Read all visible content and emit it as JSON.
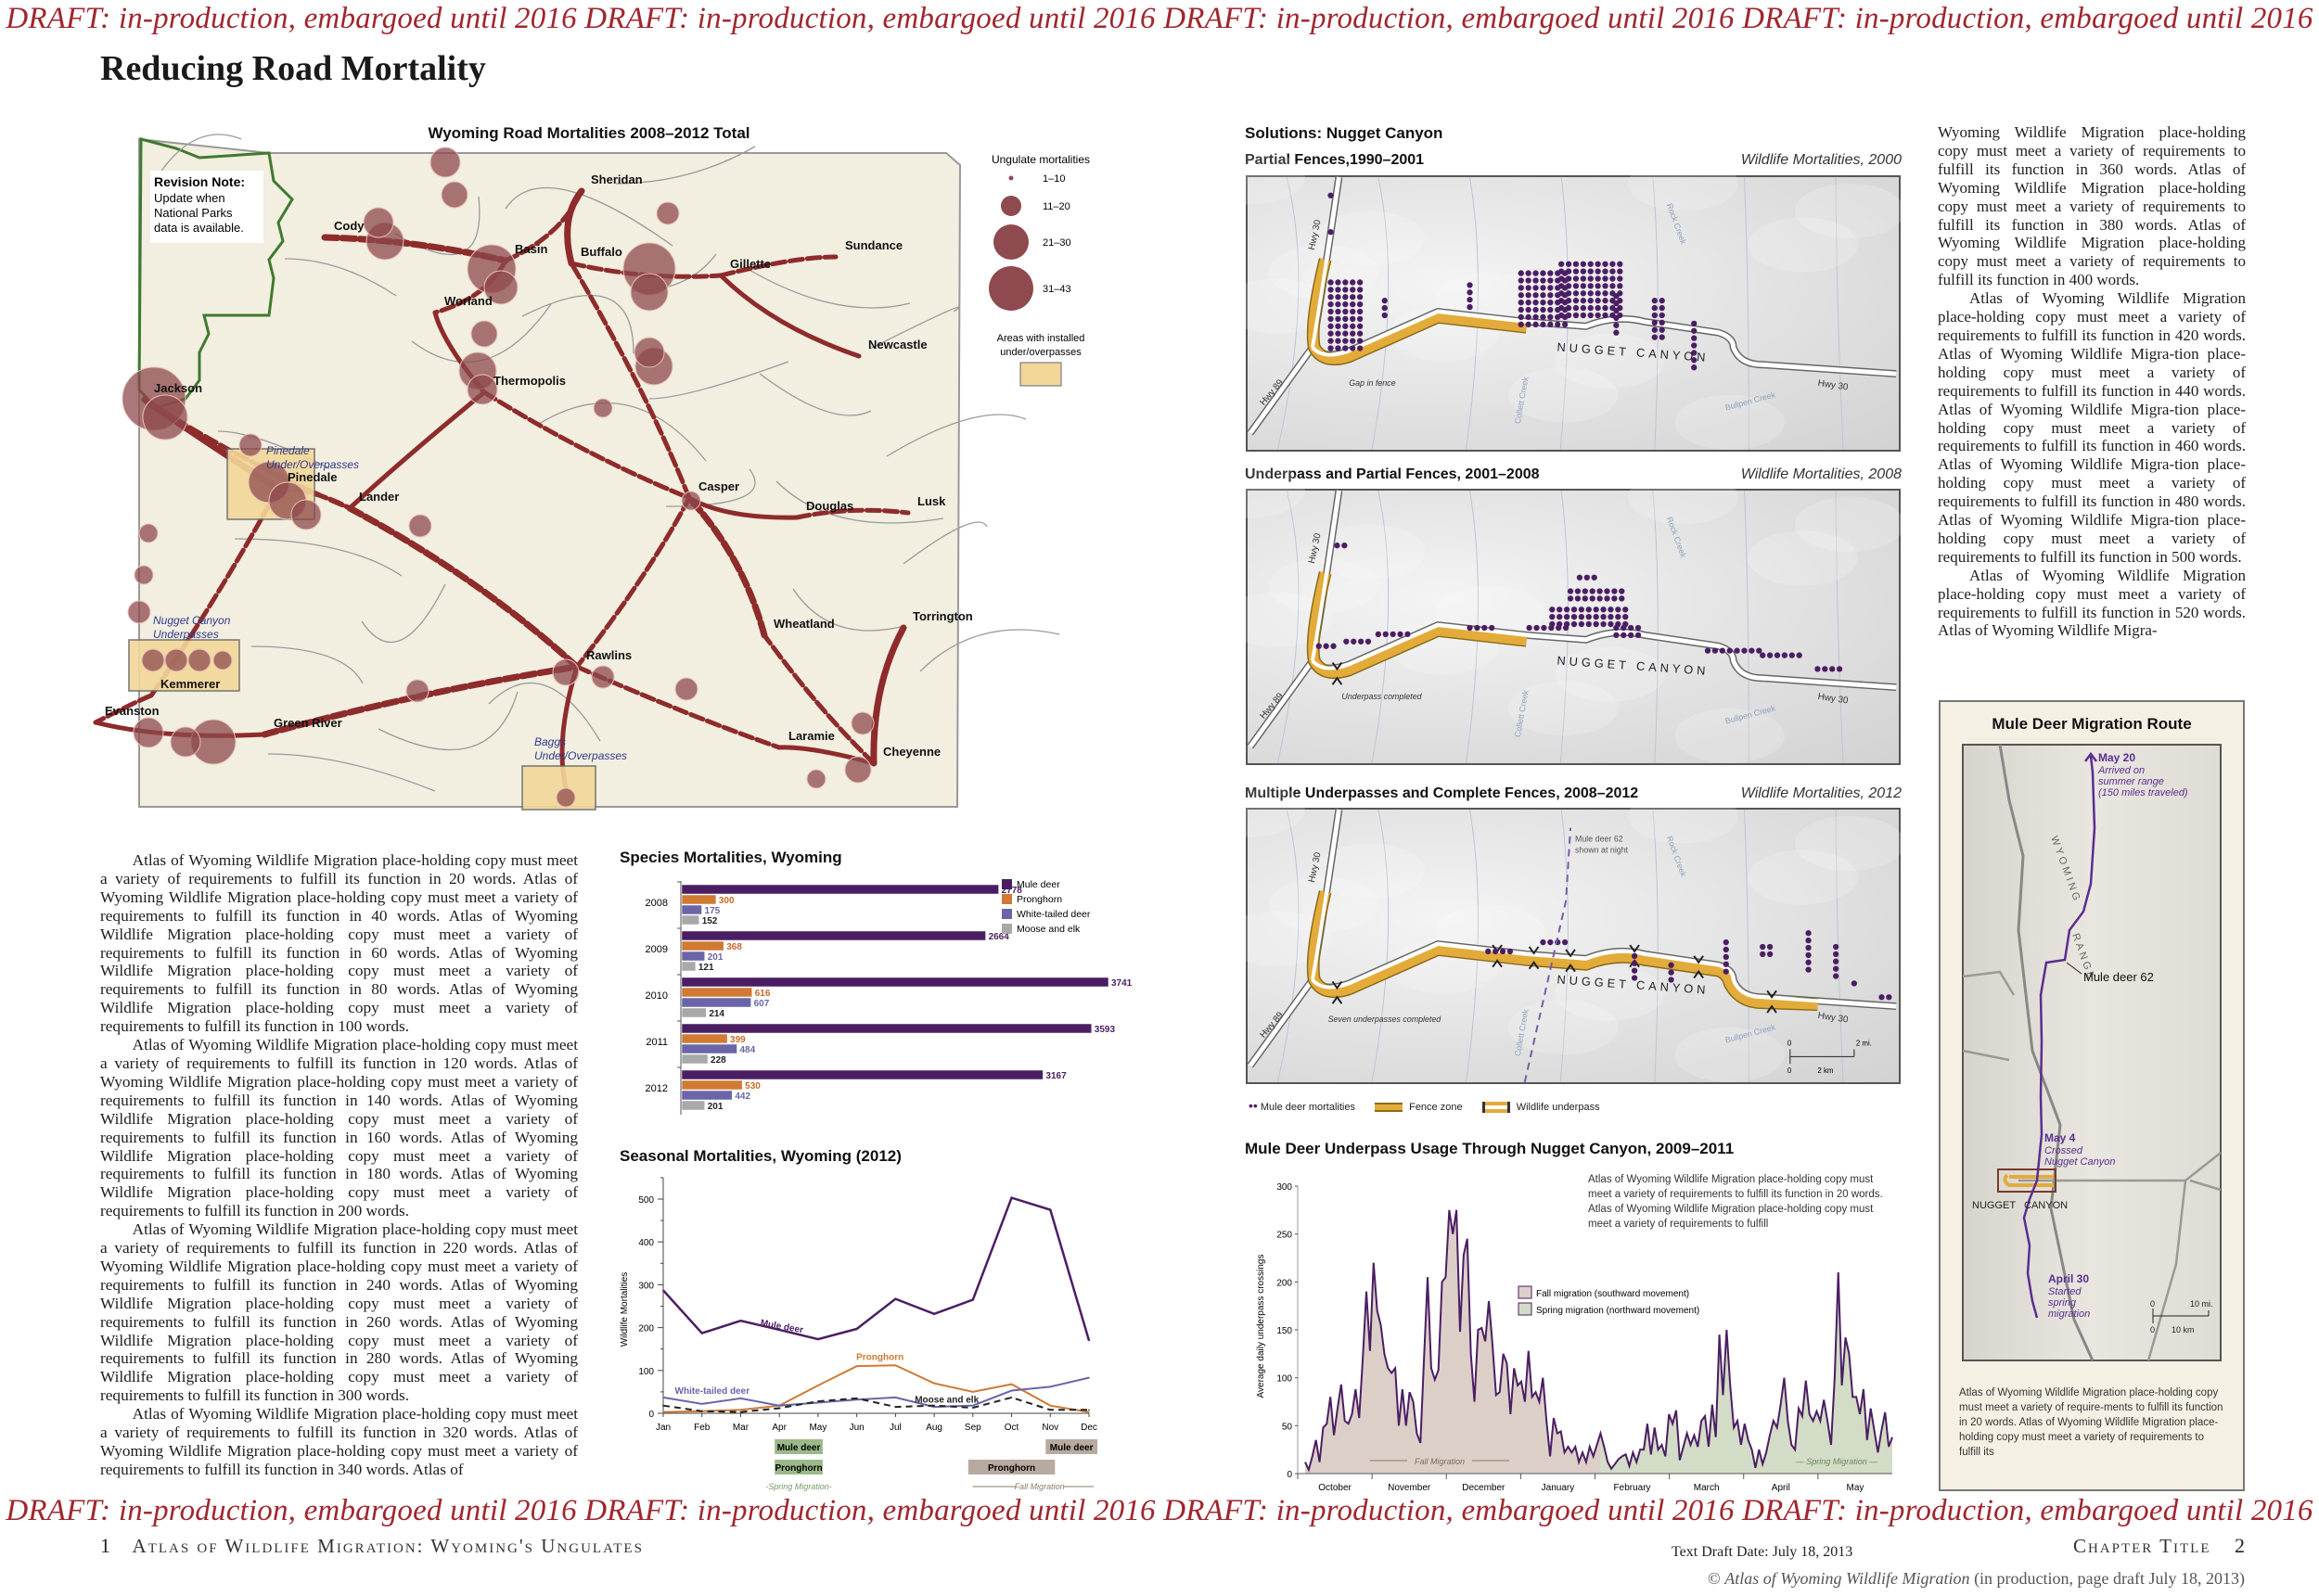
{
  "draft_banner": "DRAFT: in-production, embargoed until 2016 DRAFT: in-production, embargoed until 2016 DRAFT: in-production, embargoed until 2016 DRAFT: in-production, embargoed until 2016",
  "page_title": "Reducing Road Mortality",
  "colors": {
    "draft": "#a0262e",
    "mule_deer": "#4b1e63",
    "pronghorn": "#d07a34",
    "white_tailed": "#6a65a8",
    "moose_elk": "#a9a9a9",
    "road": "#8e2b2b",
    "fence": "#e3ac3a",
    "overpass_area": "#f3d799"
  },
  "wyoming_map": {
    "title": "Wyoming Road Mortalities 2008–2012 Total",
    "revision_note_title": "Revision Note:",
    "revision_note_lines": [
      "Update when",
      "National Parks",
      "data is available."
    ],
    "cities": [
      "Sheridan",
      "Cody",
      "Basin",
      "Buffalo",
      "Gillette",
      "Sundance",
      "Worland",
      "Thermopolis",
      "Newcastle",
      "Jackson",
      "Pinedale",
      "Lander",
      "Casper",
      "Douglas",
      "Lusk",
      "Torrington",
      "Wheatland",
      "Rawlins",
      "Kemmerer",
      "Evanston",
      "Green River",
      "Laramie",
      "Cheyenne"
    ],
    "overpass_labels": [
      [
        "Pinedale",
        "Under/Overpasses"
      ],
      [
        "Nugget Canyon",
        "Underpasses"
      ],
      [
        "Baggs",
        "Under/Overpasses"
      ]
    ],
    "legend": {
      "title": "Ungulate mortalities",
      "classes": [
        "1–10",
        "11–20",
        "21–30",
        "31–43"
      ],
      "area_label_1": "Areas with installed",
      "area_label_2": "under/overpasses"
    }
  },
  "left_text": [
    "Atlas of Wyoming Wildlife Migration place-holding copy must meet a variety of requirements to fulfill its function in 20 words. Atlas of Wyoming Wildlife Migration place-holding copy must meet a variety of requirements to fulfill its function in 40 words. Atlas of Wyoming Wildlife Migration place-holding copy must meet a variety of requirements to fulfill its function in 60 words. Atlas of Wyoming Wildlife Migration place-holding copy must meet a variety of requirements to fulfill its function in 80 words. Atlas of Wyoming Wildlife Migration place-holding copy must meet a variety of requirements to fulfill its function in 100 words.",
    "Atlas of Wyoming Wildlife Migration place-holding copy must meet a variety of requirements to fulfill its function in 120 words. Atlas of Wyoming Wildlife Migration place-holding copy must meet a variety of requirements to fulfill its function in 140 words. Atlas of Wyoming Wildlife Migration place-holding copy must meet a variety of requirements to fulfill its function in 160 words. Atlas of Wyoming Wildlife Migration place-holding copy must meet a variety of requirements to fulfill its function in 180 words. Atlas of Wyoming Wildlife Migration place-holding copy must meet a variety of requirements to fulfill its function in 200 words.",
    "Atlas of Wyoming Wildlife Migration place-holding copy must meet a variety of requirements to fulfill its function in 220 words. Atlas of Wyoming Wildlife Migration place-holding copy must meet a variety of requirements to fulfill its function in 240 words. Atlas of Wyoming Wildlife Migration place-holding copy must meet a variety of requirements to fulfill its function in 260 words. Atlas of Wyoming Wildlife Migration place-holding copy must meet a variety of requirements to fulfill its function in 280 words. Atlas of Wyoming Wildlife Migration place-holding copy must meet a variety of requirements to fulfill its function in 300 words.",
    "Atlas of Wyoming Wildlife Migration place-holding copy must meet a variety of requirements to fulfill its function in 320 words. Atlas of Wyoming Wildlife Migration place-holding copy must meet a variety of requirements to fulfill its function in 340 words. Atlas of"
  ],
  "right_text": [
    "Wyoming Wildlife Migration place-holding copy must meet a variety of requirements to fulfill its function in 360 words. Atlas of Wyoming Wildlife Migration place-holding copy must meet a variety of requirements to fulfill its function in 380 words. Atlas of Wyoming Wildlife Migration place-holding copy must meet a variety of requirements to fulfill its function in 400 words.",
    "Atlas of Wyoming Wildlife Migration place-holding copy must meet a variety of requirements to fulfill its function in 420 words. Atlas of Wyoming Wildlife Migra-tion place-holding copy must meet a variety of requirements to fulfill its function in 440 words. Atlas of Wyoming Wildlife Migra-tion place-holding copy must meet a variety of requirements to fulfill its function in 460 words. Atlas of Wyoming Wildlife Migra-tion place-holding copy must meet a variety of requirements to fulfill its function in 480 words. Atlas of Wyoming Wildlife Migra-tion place-holding copy must meet a variety of requirements to fulfill its function in 500 words.",
    "Atlas of Wyoming Wildlife Migration place-holding copy must meet a variety of requirements to fulfill its function in 520 words. Atlas of Wyoming Wildlife Migra-"
  ],
  "nugget": {
    "section_title": "Solutions: Nugget Canyon",
    "panels": [
      {
        "title": "Partial Fences,1990–2001",
        "subtitle": "Wildlife Mortalities, 2000",
        "note": "Gap in fence"
      },
      {
        "title": "Underpass and Partial Fences, 2001–2008",
        "subtitle": "Wildlife Mortalities, 2008",
        "note": "Underpass completed"
      },
      {
        "title": "Multiple Underpasses and Complete Fences, 2008–2012",
        "subtitle": "Wildlife Mortalities, 2012",
        "note": "Seven underpasses completed"
      }
    ],
    "labels": {
      "hwy30": "Hwy 30",
      "hwy89": "Hwy 89",
      "canyon1": "NUGGET",
      "canyon2": "CANYON",
      "rock_creek": "Rock Creek",
      "collett_creek": "Collett Creek",
      "bullpen_creek": "Bullpen Creek",
      "deer62": "Mule deer 62",
      "deer62b": "shown at night",
      "scale_0": "0",
      "scale_mi": "2 mi.",
      "scale_km": "2 km"
    },
    "legend": [
      "Mule deer mortalities",
      "Fence zone",
      "Wildlife underpass"
    ]
  },
  "chart_data": [
    {
      "type": "bar",
      "title": "Species Mortalities, Wyoming",
      "categories": [
        "2008",
        "2009",
        "2010",
        "2011",
        "2012"
      ],
      "series": [
        {
          "name": "Mule deer",
          "values": [
            2778,
            2664,
            3741,
            3593,
            3167
          ]
        },
        {
          "name": "Pronghorn",
          "values": [
            300,
            368,
            616,
            399,
            530
          ]
        },
        {
          "name": "White-tailed deer",
          "values": [
            175,
            201,
            607,
            484,
            442
          ]
        },
        {
          "name": "Moose and elk",
          "values": [
            152,
            121,
            214,
            228,
            201
          ]
        }
      ],
      "orientation": "horizontal",
      "legend": "top-right"
    },
    {
      "type": "line",
      "title": "Seasonal Mortalities, Wyoming (2012)",
      "ylabel": "Wildlife Mortalities",
      "x": [
        "Jan",
        "Feb",
        "Mar",
        "Apr",
        "May",
        "Jun",
        "Jul",
        "Aug",
        "Sep",
        "Oct",
        "Nov",
        "Dec"
      ],
      "yticks": [
        0,
        100,
        200,
        300,
        400,
        500
      ],
      "ylim": [
        0,
        550
      ],
      "series": [
        {
          "name": "Mule deer",
          "values": [
            287,
            187,
            216,
            195,
            173,
            197,
            267,
            232,
            265,
            503,
            475,
            170
          ]
        },
        {
          "name": "Pronghorn",
          "values": [
            3,
            5,
            8,
            18,
            65,
            110,
            112,
            70,
            50,
            68,
            18,
            3
          ]
        },
        {
          "name": "White-tailed deer",
          "values": [
            37,
            22,
            35,
            18,
            25,
            32,
            37,
            15,
            18,
            53,
            62,
            83
          ]
        },
        {
          "name": "Moose and elk",
          "values": [
            18,
            5,
            3,
            12,
            28,
            35,
            15,
            18,
            13,
            37,
            8,
            8
          ]
        }
      ],
      "migration_bands": [
        {
          "label": "Mule deer",
          "season": "spring",
          "from": "Apr",
          "to": "May"
        },
        {
          "label": "Pronghorn",
          "season": "spring",
          "from": "Apr",
          "to": "May"
        },
        {
          "label": "Mule deer",
          "season": "fall",
          "from": "Nov",
          "to": "Dec"
        },
        {
          "label": "Pronghorn",
          "season": "fall",
          "from": "Sep",
          "to": "Nov"
        }
      ],
      "spring_label": "-Spring Migration-",
      "fall_label": "Fall Migration"
    },
    {
      "type": "area",
      "title": "Mule Deer Underpass Usage Through Nugget Canyon, 2009–2011",
      "ylabel": "Average daily underpass crossings",
      "months": [
        "October",
        "November",
        "December",
        "January",
        "February",
        "March",
        "April",
        "May"
      ],
      "yticks": [
        0,
        50,
        100,
        150,
        200,
        250,
        300
      ],
      "ylim": [
        0,
        300
      ],
      "values": [
        12,
        4,
        18,
        35,
        12,
        48,
        52,
        80,
        40,
        68,
        93,
        55,
        52,
        62,
        88,
        58,
        120,
        190,
        128,
        220,
        170,
        155,
        125,
        110,
        105,
        110,
        50,
        88,
        50,
        85,
        75,
        42,
        32,
        120,
        205,
        110,
        98,
        108,
        200,
        205,
        275,
        250,
        275,
        148,
        228,
        245,
        125,
        75,
        150,
        152,
        138,
        180,
        135,
        82,
        85,
        125,
        115,
        62,
        110,
        92,
        96,
        75,
        128,
        80,
        85,
        75,
        100,
        55,
        18,
        58,
        42,
        44,
        22,
        28,
        22,
        28,
        12,
        22,
        12,
        28,
        18,
        30,
        42,
        28,
        12,
        5,
        10,
        15,
        18,
        20,
        8,
        22,
        12,
        25,
        25,
        52,
        20,
        48,
        25,
        30,
        18,
        62,
        52,
        66,
        14,
        28,
        42,
        30,
        40,
        28,
        55,
        60,
        28,
        72,
        38,
        145,
        82,
        150,
        92,
        48,
        55,
        30,
        52,
        35,
        25,
        6,
        25,
        10,
        22,
        40,
        55,
        48,
        72,
        100,
        55,
        30,
        25,
        68,
        60,
        97,
        62,
        55,
        65,
        55,
        77,
        55,
        30,
        100,
        210,
        92,
        142,
        125,
        80,
        80,
        62,
        88,
        35,
        68,
        45,
        22,
        45,
        64,
        28,
        38
      ],
      "fall_fraction_of_period": 0.5,
      "legend": [
        "Fall migration (southward movement)",
        "Spring migration (northward movement)"
      ],
      "fall_band_label": "Fall Migration",
      "spring_band_label": "Spring Migration",
      "note": "Atlas of Wyoming Wildlife Migration place-holding copy must meet a variety of requirements to fulfill its function in 20 words. Atlas of Wyoming Wildlife Migration place-holding copy must meet a variety of requirements to fulfill"
    }
  ],
  "route": {
    "title": "Mule Deer Migration Route",
    "may20": "May 20",
    "may20_desc": [
      "Arrived on",
      "summer range",
      "(150 miles traveled)"
    ],
    "may4": "May 4",
    "may4_desc": [
      "Crossed",
      "Nugget Canyon"
    ],
    "apr30": "April 30",
    "apr30_desc": [
      "Started",
      "spring",
      "migration"
    ],
    "deer": "Mule deer 62",
    "range1": "WYOMING",
    "range2": "RANGE",
    "canyon": "NUGGET   CANYON",
    "scale_0": "0",
    "scale_mi": "10 mi.",
    "scale_km": "10 km",
    "caption": "Atlas of Wyoming Wildlife Migration place-holding copy must meet a variety of require-ments to fulfill its function in 20 words. Atlas of Wyoming Wildlife Migration place-holding copy must meet a variety of requirements to fulfill its"
  },
  "footer": {
    "left_page": "1",
    "left_title": "Atlas of Wildlife Migration: Wyoming's Ungulates",
    "draft_date": "Text Draft Date: July 18, 2013",
    "right_title": "Chapter Title",
    "right_page": "2",
    "copyright_symbol": "©",
    "copyright_italic": "Atlas of Wyoming Wildlife Migration",
    "copyright_rest": "(in production, page draft July 18, 2013)"
  }
}
